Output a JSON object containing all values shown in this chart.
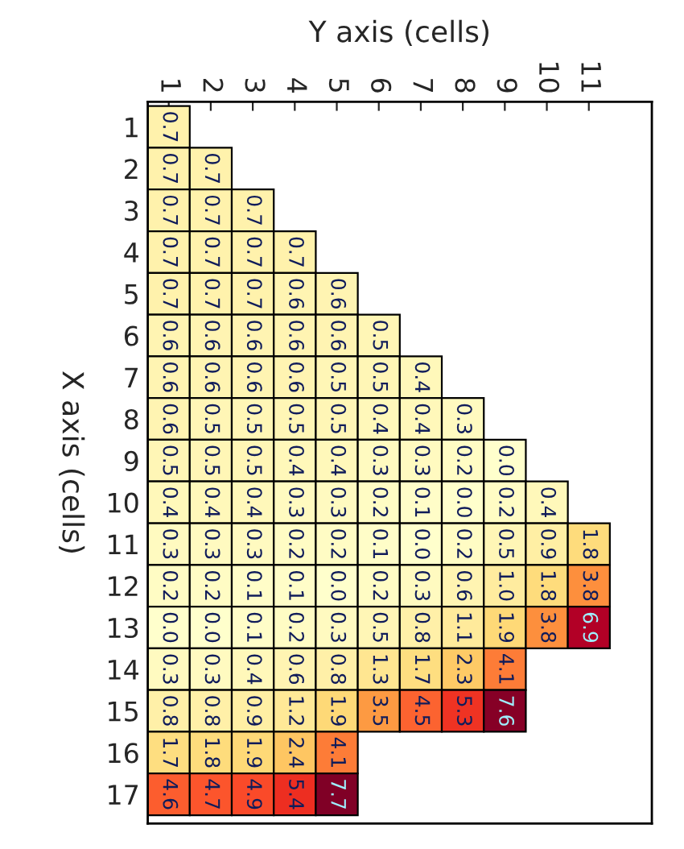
{
  "chart_data": {
    "type": "heatmap",
    "xlabel": "Y axis (cells)",
    "ylabel": "X axis (cells)",
    "categories": [
      "1",
      "2",
      "3",
      "4",
      "5",
      "6",
      "7",
      "8",
      "9",
      "10",
      "11"
    ],
    "y_categories": [
      "1",
      "2",
      "3",
      "4",
      "5",
      "6",
      "7",
      "8",
      "9",
      "10",
      "11",
      "12",
      "13",
      "14",
      "15",
      "16",
      "17"
    ],
    "cells": [
      [
        0.7,
        null,
        null,
        null,
        null,
        null,
        null,
        null,
        null,
        null,
        null
      ],
      [
        0.7,
        0.7,
        null,
        null,
        null,
        null,
        null,
        null,
        null,
        null,
        null
      ],
      [
        0.7,
        0.7,
        0.7,
        null,
        null,
        null,
        null,
        null,
        null,
        null,
        null
      ],
      [
        0.7,
        0.7,
        0.7,
        0.7,
        null,
        null,
        null,
        null,
        null,
        null,
        null
      ],
      [
        0.7,
        0.7,
        0.7,
        0.6,
        0.6,
        null,
        null,
        null,
        null,
        null,
        null
      ],
      [
        0.6,
        0.6,
        0.6,
        0.6,
        0.6,
        0.5,
        null,
        null,
        null,
        null,
        null
      ],
      [
        0.6,
        0.6,
        0.6,
        0.6,
        0.5,
        0.5,
        0.4,
        null,
        null,
        null,
        null
      ],
      [
        0.6,
        0.5,
        0.5,
        0.5,
        0.5,
        0.4,
        0.4,
        0.3,
        null,
        null,
        null
      ],
      [
        0.5,
        0.5,
        0.5,
        0.4,
        0.4,
        0.3,
        0.3,
        0.2,
        0.0,
        null,
        null
      ],
      [
        0.4,
        0.4,
        0.4,
        0.3,
        0.3,
        0.2,
        0.1,
        0.0,
        0.2,
        0.4,
        null
      ],
      [
        0.3,
        0.3,
        0.3,
        0.2,
        0.2,
        0.1,
        0.0,
        0.2,
        0.5,
        0.9,
        1.8
      ],
      [
        0.2,
        0.2,
        0.1,
        0.1,
        0.0,
        0.2,
        0.3,
        0.6,
        1.0,
        1.8,
        3.8
      ],
      [
        0.0,
        0.0,
        0.1,
        0.2,
        0.3,
        0.5,
        0.8,
        1.1,
        1.9,
        3.8,
        6.9
      ],
      [
        0.3,
        0.3,
        0.4,
        0.6,
        0.8,
        1.3,
        1.7,
        2.3,
        4.1,
        null,
        null
      ],
      [
        0.8,
        0.8,
        0.9,
        1.2,
        1.9,
        3.5,
        4.5,
        5.3,
        7.6,
        null,
        null
      ],
      [
        1.7,
        1.8,
        1.9,
        2.4,
        4.1,
        null,
        null,
        null,
        null,
        null,
        null
      ],
      [
        4.6,
        4.7,
        4.9,
        5.4,
        7.7,
        null,
        null,
        null,
        null,
        null,
        null
      ]
    ],
    "cell_labels": [
      [
        "0.7",
        null,
        null,
        null,
        null,
        null,
        null,
        null,
        null,
        null,
        null
      ],
      [
        "0.7",
        "0.7",
        null,
        null,
        null,
        null,
        null,
        null,
        null,
        null,
        null
      ],
      [
        "0.7",
        "0.7",
        "0.7",
        null,
        null,
        null,
        null,
        null,
        null,
        null,
        null
      ],
      [
        "0.7",
        "0.7",
        "0.7",
        "0.7",
        null,
        null,
        null,
        null,
        null,
        null,
        null
      ],
      [
        "0.7",
        "0.7",
        "0.7",
        "0.6",
        "0.6",
        null,
        null,
        null,
        null,
        null,
        null
      ],
      [
        "0.6",
        "0.6",
        "0.6",
        "0.6",
        "0.6",
        "0.5",
        null,
        null,
        null,
        null,
        null
      ],
      [
        "0.6",
        "0.6",
        "0.6",
        "0.6",
        "0.5",
        "0.5",
        "0.4",
        null,
        null,
        null,
        null
      ],
      [
        "0.6",
        "0.5",
        "0.5",
        "0.5",
        "0.5",
        "0.4",
        "0.4",
        "0.3",
        null,
        null,
        null
      ],
      [
        "0.5",
        "0.5",
        "0.5",
        "0.4",
        "0.4",
        "0.3",
        "0.3",
        "0.2",
        "0.0",
        null,
        null
      ],
      [
        "0.4",
        "0.4",
        "0.4",
        "0.3",
        "0.3",
        "0.2",
        "0.1",
        "0.0",
        "0.2",
        "0.4",
        null
      ],
      [
        "0.3",
        "0.3",
        "0.3",
        "0.2",
        "0.2",
        "0.1",
        "0.0",
        "0.2",
        "0.5",
        "0.9",
        "1.8"
      ],
      [
        "0.2",
        "0.2",
        "0.1",
        "0.1",
        "0.0",
        "0.2",
        "0.3",
        "0.6",
        "1.0",
        "1.8",
        "3.8"
      ],
      [
        "0.0",
        "0.0",
        "0.1",
        "0.2",
        "0.3",
        "0.5",
        "0.8",
        "1.1",
        "1.9",
        "3.8",
        "6.9"
      ],
      [
        "0.3",
        "0.3",
        "0.4",
        "0.6",
        "0.8",
        "1.3",
        "1.7",
        "2.3",
        "4.1",
        null,
        null
      ],
      [
        "0.8",
        "0.8",
        "0.9",
        "1.2",
        "1.9",
        "3.5",
        "4.5",
        "5.3",
        "7.6",
        null,
        null
      ],
      [
        "1.7",
        "1.8",
        "1.9",
        "2.4",
        "4.1",
        null,
        null,
        null,
        null,
        null,
        null
      ],
      [
        "4.6",
        "4.7",
        "4.9",
        "5.4",
        "7.7",
        null,
        null,
        null,
        null,
        null,
        null
      ]
    ]
  }
}
